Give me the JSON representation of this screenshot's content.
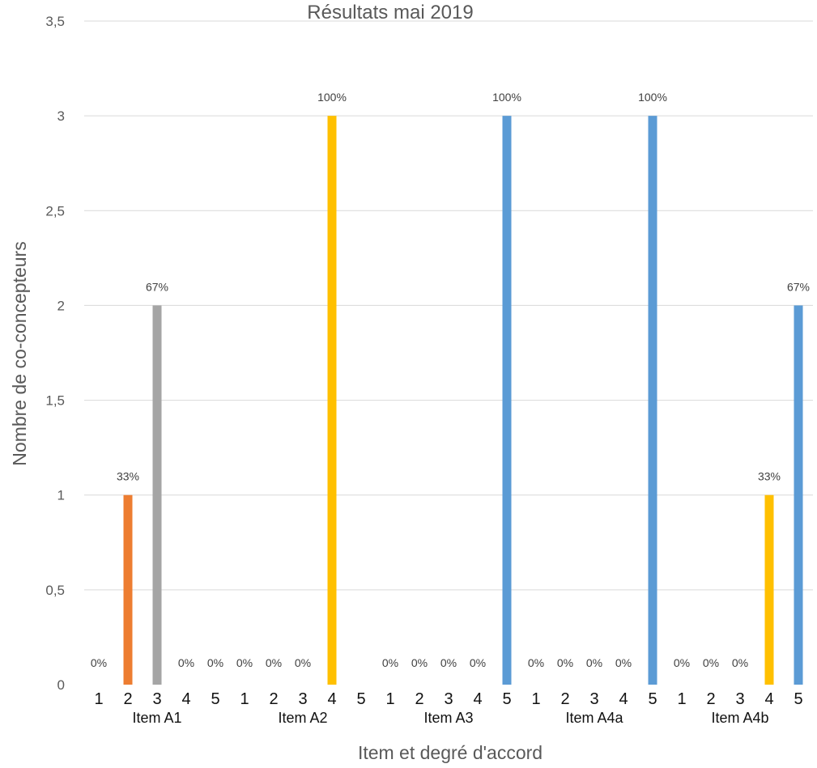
{
  "chart_data": {
    "type": "bar",
    "title": "Résultats mai 2019",
    "xlabel": "Item et degré d'accord",
    "ylabel": "Nombre de co-concepteurs",
    "ylim": [
      0,
      3.5
    ],
    "yticks": [
      "0",
      "0,5",
      "1",
      "1,5",
      "2",
      "2,5",
      "3",
      "3,5"
    ],
    "grid": true,
    "legend": "none",
    "degree_labels": [
      "1",
      "2",
      "3",
      "4",
      "5"
    ],
    "colors": {
      "1": "#5b9bd5",
      "2": "#ed7d31",
      "3": "#a5a5a5",
      "4": "#ffc000",
      "5": "#5b9bd5"
    },
    "groups": [
      {
        "label": "Item A1",
        "values": [
          0,
          1,
          2,
          0,
          0
        ],
        "labels": [
          "0%",
          "33%",
          "67%",
          "0%",
          "0%"
        ]
      },
      {
        "label": "Item A2",
        "values": [
          0,
          0,
          0,
          3,
          0
        ],
        "labels": [
          "0%",
          "0%",
          "0%",
          "100%",
          ""
        ]
      },
      {
        "label": "Item A3",
        "values": [
          0,
          0,
          0,
          0,
          3
        ],
        "labels": [
          "0%",
          "0%",
          "0%",
          "0%",
          "100%"
        ]
      },
      {
        "label": "Item A4a",
        "values": [
          0,
          0,
          0,
          0,
          3
        ],
        "labels": [
          "0%",
          "0%",
          "0%",
          "0%",
          "100%"
        ]
      },
      {
        "label": "Item A4b",
        "values": [
          0,
          0,
          0,
          1,
          2
        ],
        "labels": [
          "0%",
          "0%",
          "0%",
          "33%",
          "67%"
        ]
      }
    ]
  }
}
